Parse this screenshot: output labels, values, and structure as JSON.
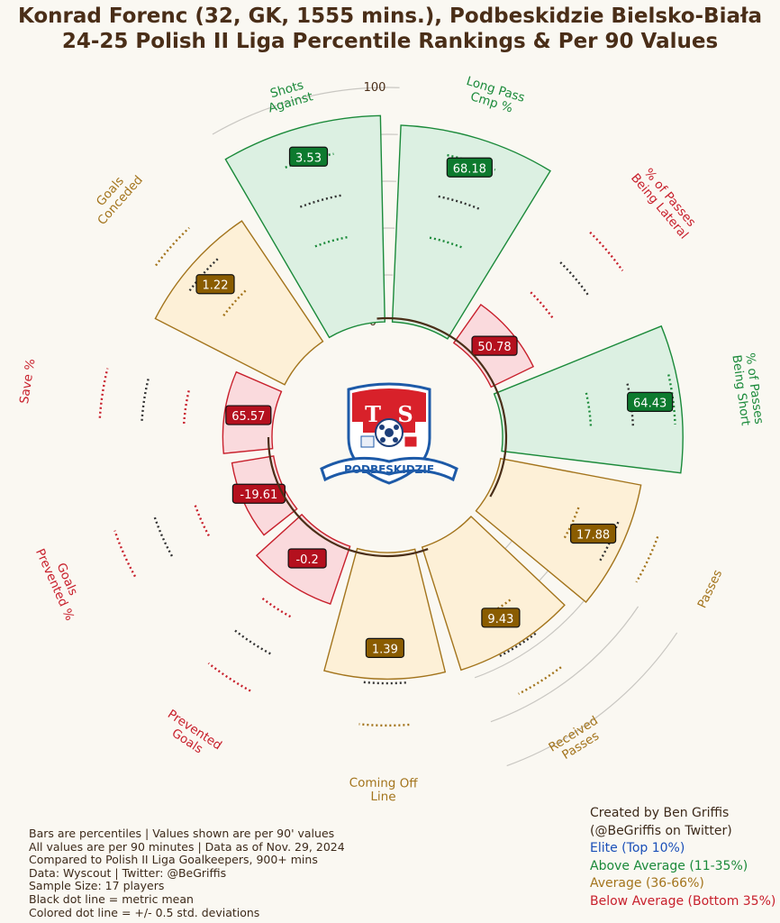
{
  "header": {
    "title_line1": "Konrad Forenc (32, GK, 1555 mins.), Podbeskidzie Bielsko-Biała",
    "title_line2": "24-25 Polish II Liga Percentile Rankings & Per 90 Values"
  },
  "chart_data": {
    "type": "radar-bar",
    "radial_axis": {
      "ticks": [
        0,
        20,
        40,
        60,
        80,
        100
      ],
      "range": [
        0,
        100
      ]
    },
    "metrics": [
      {
        "label": "Long Pass\nCmp %",
        "value_label": "68.18",
        "percentile": 84,
        "category": "above"
      },
      {
        "label": "% of Passes\nBeing Lateral",
        "value_label": "50.78",
        "percentile": 20,
        "category": "below"
      },
      {
        "label": "% of Passes\nBeing Short",
        "value_label": "64.43",
        "percentile": 77,
        "category": "above"
      },
      {
        "label": "Passes",
        "value_label": "17.88",
        "percentile": 61,
        "category": "average"
      },
      {
        "label": "Received\nPasses",
        "value_label": "9.43",
        "percentile": 55,
        "category": "average"
      },
      {
        "label": "Coming Off\nLine",
        "value_label": "1.39",
        "percentile": 54,
        "category": "average"
      },
      {
        "label": "Prevented\nGoals",
        "value_label": "-0.2",
        "percentile": 26,
        "category": "below"
      },
      {
        "label": "Goals\nPrevented %",
        "value_label": "-19.61",
        "percentile": 18,
        "category": "below"
      },
      {
        "label": "Save %",
        "value_label": "65.57",
        "percentile": 21,
        "category": "below"
      },
      {
        "label": "Goals\nConceded",
        "value_label": "1.22",
        "percentile": 62,
        "category": "average"
      },
      {
        "label": "Shots\nAgainst",
        "value_label": "3.53",
        "percentile": 88,
        "category": "above"
      }
    ],
    "categories": {
      "elite": {
        "name": "Elite (Top 10%)",
        "color": "#1a4fb8"
      },
      "above": {
        "name": "Above Average (11-35%)",
        "color": "#1b8a3a",
        "fill": "#dcf0e2",
        "label_bg": "#0d7a2e"
      },
      "average": {
        "name": "Average (36-66%)",
        "color": "#a3741c",
        "fill": "#fdf0d7",
        "label_bg": "#8a5c00"
      },
      "below": {
        "name": "Below Average (Bottom 35%)",
        "color": "#c8202c",
        "fill": "#fadadd",
        "label_bg": "#b4101e"
      }
    }
  },
  "notes": [
    "Bars are percentiles | Values shown are per 90' values",
    "All values are per 90 minutes | Data as of Nov. 29, 2024",
    "Compared to Polish II Liga Goalkeepers, 900+ mins",
    "Data: Wyscout | Twitter: @BeGriffis",
    "Sample Size: 17 players",
    "Black dot line = metric mean",
    "Colored dot line = +/- 0.5 std. deviations"
  ],
  "credits": {
    "line1": "Created by Ben Griffis",
    "line2": "(@BeGriffis on Twitter)"
  },
  "logo": {
    "letter_left": "T",
    "letter_right": "S",
    "banner_text": "PODBESKIDZIE"
  }
}
